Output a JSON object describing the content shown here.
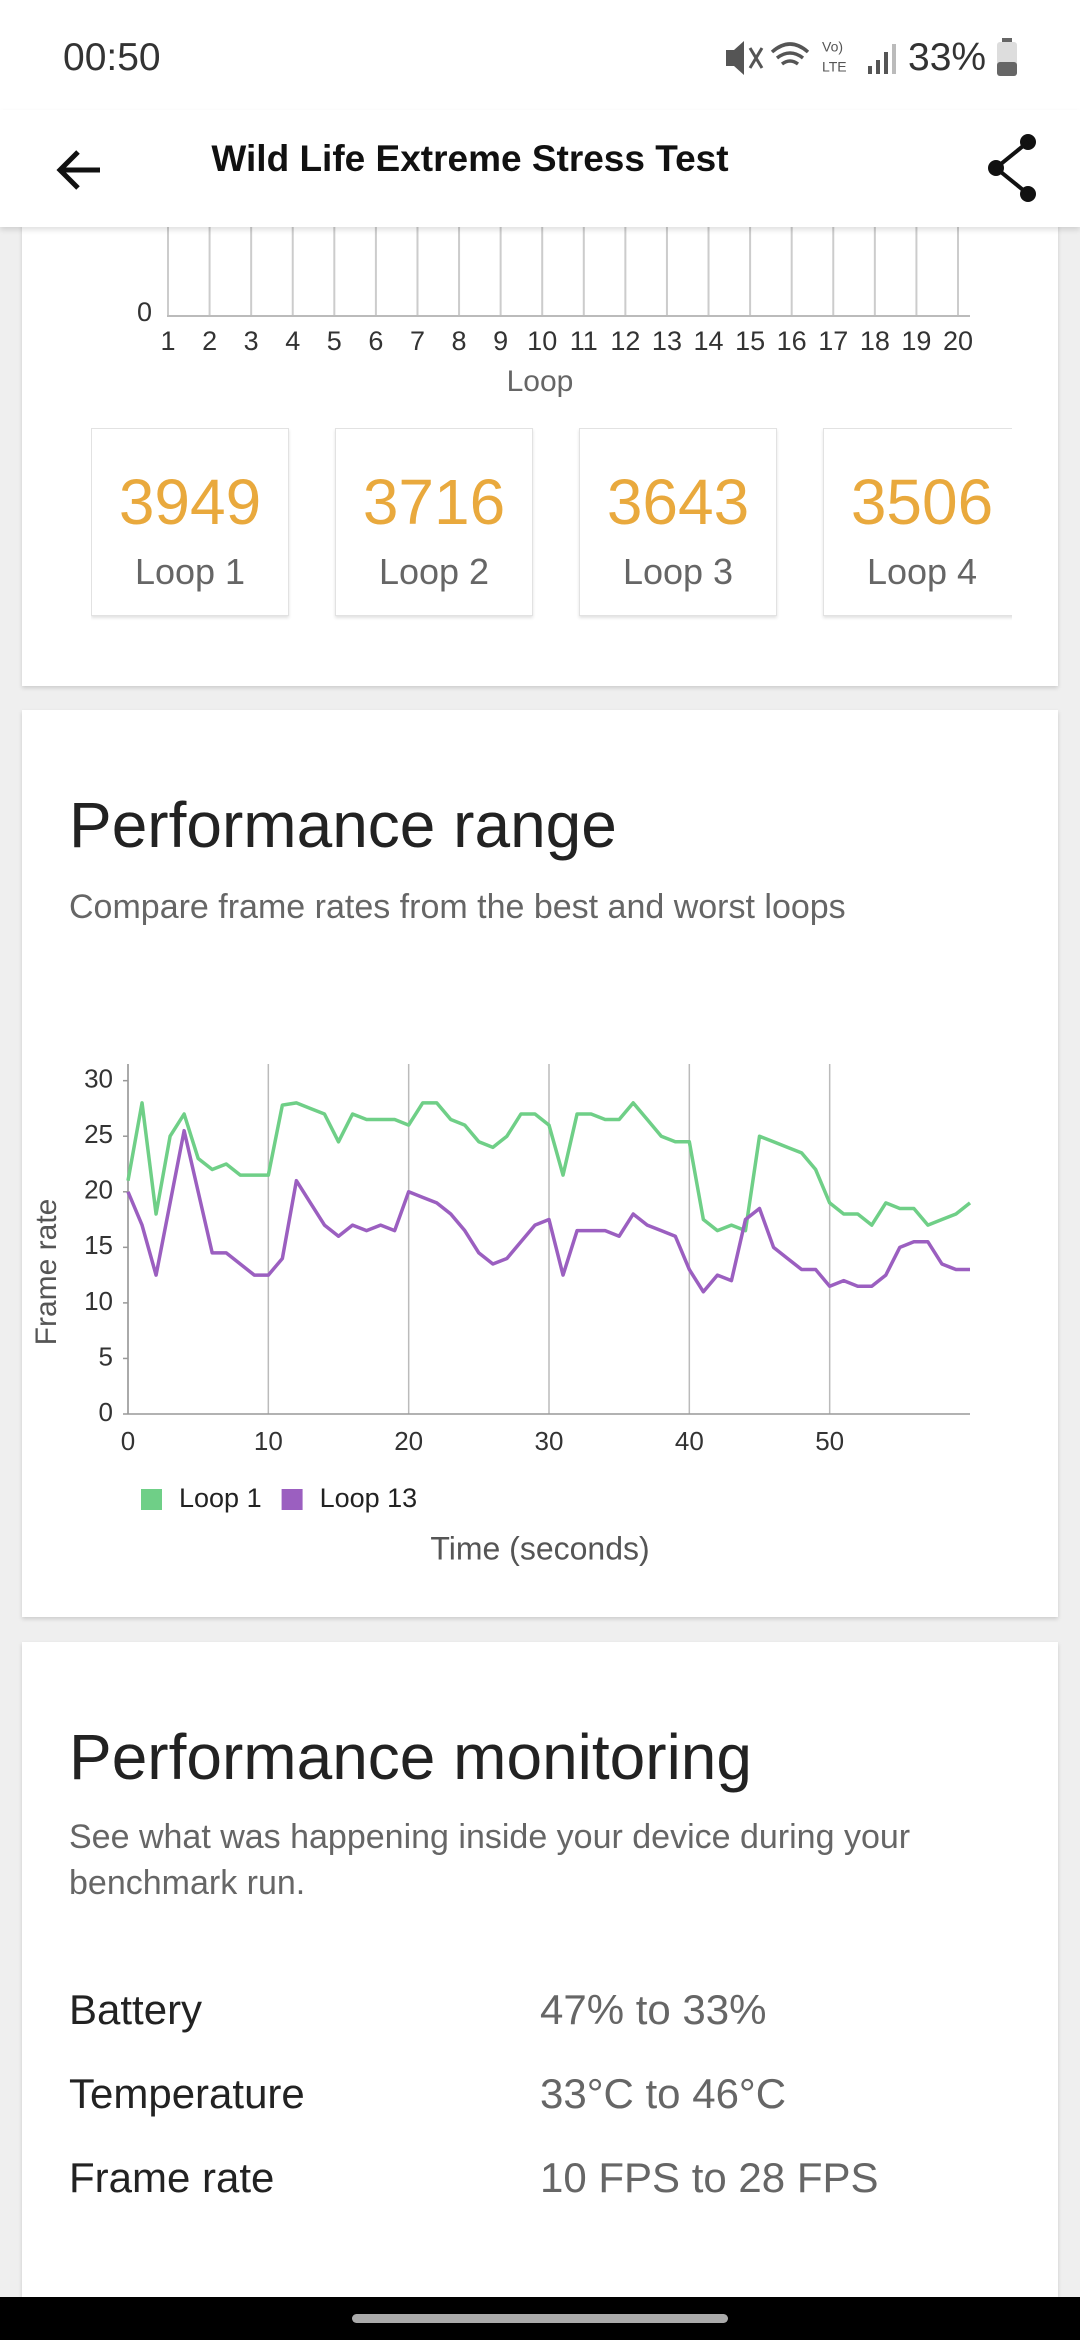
{
  "status_bar": {
    "time": "00:50",
    "battery": "33%"
  },
  "app_bar": {
    "title": "Wild Life Extreme Stress Test"
  },
  "score_chart": {
    "chart_data": {
      "type": "bar",
      "x_label": "Loop",
      "categories": [
        "1",
        "2",
        "3",
        "4",
        "5",
        "6",
        "7",
        "8",
        "9",
        "10",
        "11",
        "12",
        "13",
        "14",
        "15",
        "16",
        "17",
        "18",
        "19",
        "20"
      ],
      "yticks": [
        0
      ],
      "grid": true
    }
  },
  "scores": [
    {
      "value": 3949,
      "label": "Loop 1"
    },
    {
      "value": 3716,
      "label": "Loop 2"
    },
    {
      "value": 3643,
      "label": "Loop 3"
    },
    {
      "value": 3506,
      "label": "Loop 4"
    }
  ],
  "performance_range": {
    "title": "Performance range",
    "subtitle": "Compare frame rates from the best and worst loops",
    "chart_data": {
      "type": "line",
      "x_label": "Time (seconds)",
      "y_label": "Frame rate",
      "x": [
        0,
        1,
        2,
        3,
        4,
        5,
        6,
        7,
        8,
        9,
        10,
        11,
        12,
        13,
        14,
        15,
        16,
        17,
        18,
        19,
        20,
        21,
        22,
        23,
        24,
        25,
        26,
        27,
        28,
        29,
        30,
        31,
        32,
        33,
        34,
        35,
        36,
        37,
        38,
        39,
        40,
        41,
        42,
        43,
        44,
        45,
        46,
        47,
        48,
        49,
        50,
        51,
        52,
        53,
        54,
        55,
        56,
        57,
        58,
        59,
        60
      ],
      "series": [
        {
          "name": "Loop 1",
          "color": "#6fcf87",
          "values": [
            21,
            28,
            18,
            25,
            27,
            23,
            22,
            22.5,
            21.5,
            21.5,
            21.5,
            27.8,
            28,
            27.5,
            27,
            24.5,
            27,
            26.5,
            26.5,
            26.5,
            26,
            28,
            28,
            26.5,
            26,
            24.5,
            24,
            25,
            27,
            27,
            26,
            21.5,
            27,
            27,
            26.5,
            26.5,
            28,
            26.5,
            25,
            24.5,
            24.5,
            17.5,
            16.5,
            17,
            16.5,
            25,
            24.5,
            24,
            23.5,
            22,
            19,
            18,
            18,
            17,
            19,
            18.5,
            18.5,
            17,
            17.5,
            18,
            19
          ]
        },
        {
          "name": "Loop 13",
          "color": "#9b5fc0",
          "values": [
            20,
            17,
            12.5,
            19,
            25.5,
            20,
            14.5,
            14.5,
            13.5,
            12.5,
            12.5,
            14,
            21,
            19,
            17,
            16,
            17,
            16.5,
            17,
            16.5,
            20,
            19.5,
            19,
            18,
            16.5,
            14.5,
            13.5,
            14,
            15.5,
            17,
            17.5,
            12.5,
            16.5,
            16.5,
            16.5,
            16,
            18,
            17,
            16.5,
            16,
            13,
            11,
            12.5,
            12,
            17.5,
            18.5,
            15,
            14,
            13,
            13,
            11.5,
            12,
            11.5,
            11.5,
            12.5,
            15,
            15.5,
            15.5,
            13.5,
            13,
            13
          ]
        }
      ],
      "xlim": [
        0,
        60
      ],
      "ylim": [
        0,
        31.5
      ],
      "xticks": [
        0,
        10,
        20,
        30,
        40,
        50
      ],
      "yticks": [
        0,
        5,
        10,
        15,
        20,
        25,
        30
      ],
      "grid": true,
      "legend": "bottom-left"
    }
  },
  "performance_monitoring": {
    "title": "Performance monitoring",
    "subtitle": "See what was happening inside your device during your benchmark run.",
    "rows": [
      {
        "label": "Battery",
        "value": "47% to 33%"
      },
      {
        "label": "Temperature",
        "value": "33°C to 46°C"
      },
      {
        "label": "Frame rate",
        "value": "10 FPS to 28 FPS"
      }
    ]
  }
}
